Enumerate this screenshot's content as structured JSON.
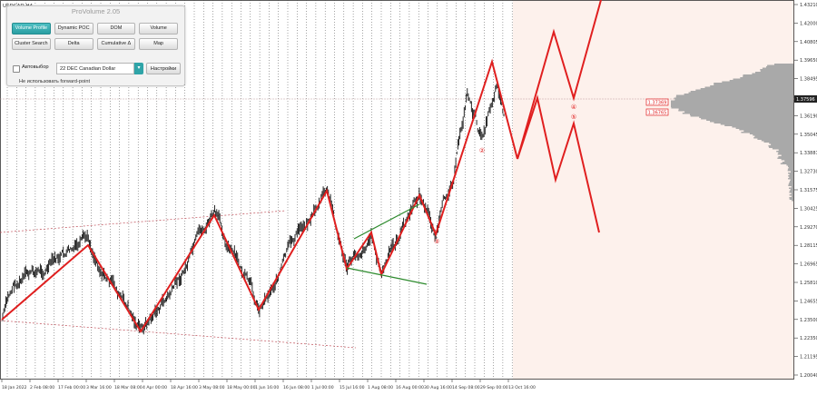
{
  "chart": {
    "symbol": "USDCAD,H4",
    "current_price_tag": "1.37596",
    "level_tags": [
      "1.37369",
      "1.36765"
    ],
    "wave_labels": [
      "②",
      "③",
      "④",
      "⑤"
    ],
    "price_axis_labels": [
      "1.43210",
      "1.42000",
      "1.40805",
      "1.39650",
      "1.38495",
      "1.37596",
      "1.36190",
      "1.35045",
      "1.33881",
      "1.32730",
      "1.31575",
      "1.30425",
      "1.29270",
      "1.28115",
      "1.26965",
      "1.25810",
      "1.24655",
      "1.23500",
      "1.22350",
      "1.21195",
      "1.20040"
    ],
    "time_axis_labels": [
      "18 Jan 2022",
      "2 Feb 08:00",
      "17 Feb 00:00",
      "3 Mar 16:00",
      "18 Mar 08:00",
      "4 Apr 00:00",
      "18 Apr 16:00",
      "3 May 08:00",
      "18 May 00:00",
      "1 Jun 16:00",
      "16 Jun 08:00",
      "1 Jul 00:00",
      "15 Jul 16:00",
      "1 Aug 08:00",
      "16 Aug 00:00",
      "30 Aug 16:00",
      "14 Sep 08:00",
      "29 Sep 00:00",
      "13 Oct 16:00"
    ],
    "colors": {
      "background": "#ffffff",
      "forecast_zone": "#fdf1ec",
      "zigzag": "#e01f1f",
      "forecast": "#e01f1f",
      "channel": "#c0505a",
      "triangle": "#2e8b2e",
      "price": "#111111",
      "volume_profile": "#a9a9a9",
      "price_tag": "#222222"
    }
  },
  "panel": {
    "title": "ProVolume 2.05",
    "buttons": [
      "Volume Profile",
      "Dynamic POC",
      "DOM",
      "Volume",
      "Cluster Search",
      "Delta",
      "Cumulative Δ",
      "Map"
    ],
    "active_button": "Volume Profile",
    "autoselect_label": "Автовыбор",
    "instrument": "22 DEC Canadian Dollar",
    "settings_label": "Настройки",
    "forward_point_label": "Не использовать forward-point"
  }
}
